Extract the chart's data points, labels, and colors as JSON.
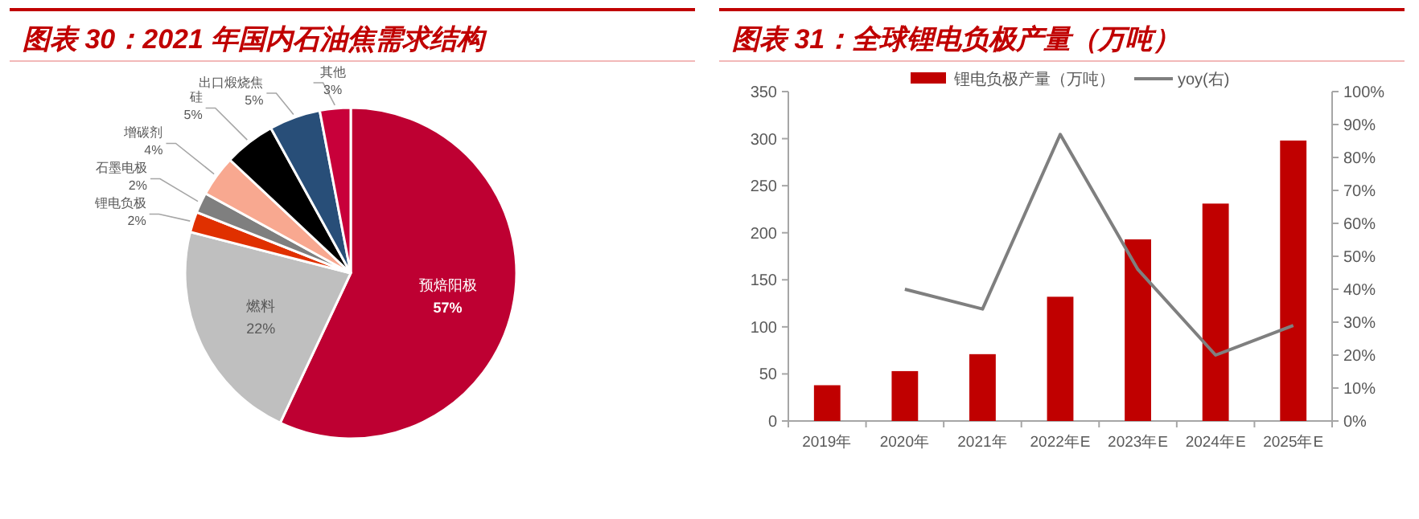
{
  "chart_data": [
    {
      "type": "pie",
      "title": "图表 30：2021 年国内石油焦需求结构",
      "categories": [
        "预焙阳极",
        "燃料",
        "锂电负极",
        "石墨电极",
        "增碳剂",
        "硅",
        "出口煅烧焦",
        "其他"
      ],
      "values": [
        57,
        22,
        2,
        2,
        4,
        5,
        5,
        3
      ],
      "colors": [
        "#be0032",
        "#bfbfbf",
        "#e03000",
        "#7f7f7f",
        "#f8a890",
        "#000000",
        "#284e78",
        "#c8003a"
      ],
      "value_labels": [
        "57%",
        "22%",
        "2%",
        "2%",
        "4%",
        "5%",
        "5%",
        "3%"
      ]
    },
    {
      "type": "bar",
      "title": "图表 31：全球锂电负极产量（万吨）",
      "categories": [
        "2019年",
        "2020年",
        "2021年",
        "2022年E",
        "2023年E",
        "2024年E",
        "2025年E"
      ],
      "series": [
        {
          "name": "锂电负极产量（万吨）",
          "type": "bar",
          "color": "#c00000",
          "values": [
            38,
            53,
            71,
            132,
            193,
            231,
            298
          ]
        },
        {
          "name": "yoy(右)",
          "type": "line",
          "axis": "y2",
          "color": "#7f7f7f",
          "values": [
            null,
            40,
            34,
            87,
            46,
            20,
            29
          ]
        }
      ],
      "ylim": [
        0,
        350
      ],
      "yticks": [
        0,
        50,
        100,
        150,
        200,
        250,
        300,
        350
      ],
      "y2lim": [
        0,
        100
      ],
      "y2ticks": [
        {
          "value": 0,
          "label": "0%"
        },
        {
          "value": 10,
          "label": "10%"
        },
        {
          "value": 20,
          "label": "20%"
        },
        {
          "value": 30,
          "label": "30%"
        },
        {
          "value": 40,
          "label": "40%"
        },
        {
          "value": 50,
          "label": "50%"
        },
        {
          "value": 60,
          "label": "60%"
        },
        {
          "value": 70,
          "label": "70%"
        },
        {
          "value": 80,
          "label": "80%"
        },
        {
          "value": 90,
          "label": "90%"
        },
        {
          "value": 100,
          "label": "100%"
        }
      ],
      "legend": "top",
      "grid": false,
      "marker": "none",
      "line_style": "solid"
    }
  ]
}
